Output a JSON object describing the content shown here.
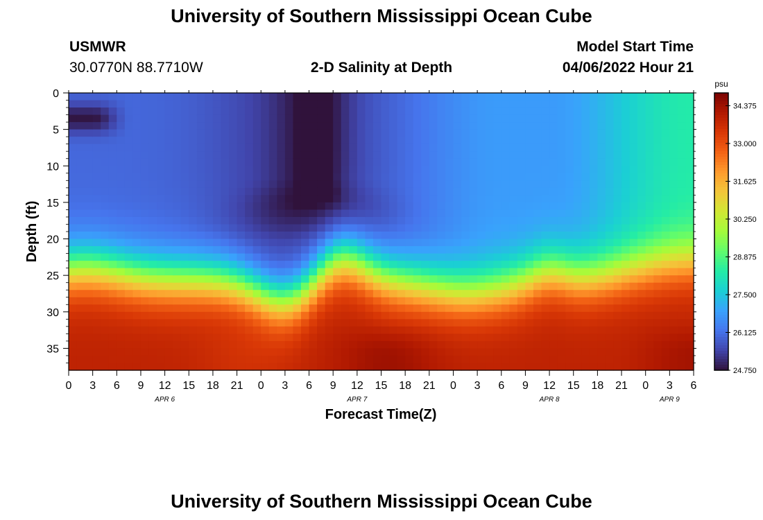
{
  "page": {
    "title_top": "University of Southern Mississippi Ocean Cube",
    "title_bottom": "University of Southern Mississippi Ocean Cube",
    "station_id": "USMWR",
    "station_coords": "30.0770N  88.7710W",
    "plot_title": "2-D Salinity at Depth",
    "model_start_label": "Model Start Time",
    "model_start_value": "04/06/2022 Hour 21"
  },
  "chart_data": {
    "type": "heatmap",
    "title": "2-D Salinity at Depth",
    "xlabel": "Forecast Time(Z)",
    "ylabel": "Depth (ft)",
    "x_range_hours": [
      0,
      78
    ],
    "x_tick_labels": [
      "0",
      "3",
      "6",
      "9",
      "12",
      "15",
      "18",
      "21",
      "0",
      "3",
      "6",
      "9",
      "12",
      "15",
      "18",
      "21",
      "0",
      "3",
      "6",
      "9",
      "12",
      "15",
      "18",
      "21",
      "0",
      "3",
      "6"
    ],
    "day_labels": [
      {
        "label": "APR 6",
        "hour": 12
      },
      {
        "label": "APR 7",
        "hour": 36
      },
      {
        "label": "APR 8",
        "hour": 60
      },
      {
        "label": "APR 9",
        "hour": 75
      }
    ],
    "y_range": [
      0,
      38
    ],
    "y_ticks": [
      0,
      5,
      10,
      15,
      20,
      25,
      30,
      35
    ],
    "y_inverted": true,
    "colorbar": {
      "unit": "psu",
      "min": 24.75,
      "max": 34.84,
      "tick_values": [
        34.375,
        33.0,
        31.625,
        30.25,
        28.875,
        27.5,
        26.125,
        24.75
      ],
      "tick_labels": [
        "34.375",
        "33.000",
        "31.625",
        "30.250",
        "28.875",
        "27.500",
        "26.125",
        "24.750"
      ],
      "colormap": [
        "#30123b",
        "#4145ab",
        "#4675ed",
        "#39a2fc",
        "#1bcfd4",
        "#24eca6",
        "#61fc6c",
        "#a4fc3b",
        "#d1e834",
        "#f3c63a",
        "#fe9b2d",
        "#f36315",
        "#d93806",
        "#b11901",
        "#7a0402"
      ]
    },
    "field_description": {
      "surface_salinity": 26.0,
      "bottom_salinity": 34.0,
      "features": [
        {
          "name": "surface low-salinity lens",
          "hour_range": [
            0,
            7
          ],
          "depth_range": [
            1.5,
            6
          ],
          "min_value": 24.8
        },
        {
          "name": "low-salinity plume",
          "hour_center": 31,
          "depth_range": [
            0,
            17
          ],
          "min_value": 24.9
        },
        {
          "name": "surface freshening late period",
          "hour_range": [
            54,
            78
          ],
          "value": 28.0
        }
      ]
    }
  }
}
